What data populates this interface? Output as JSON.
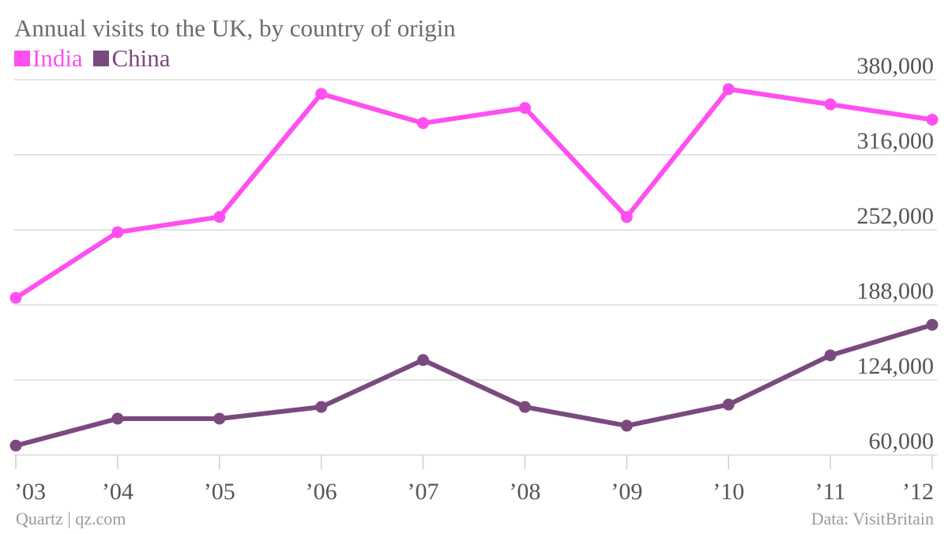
{
  "title": "Annual visits to the UK, by country of origin",
  "source_left": "Quartz | qz.com",
  "source_right": "Data: VisitBritain",
  "colors": {
    "India": "#ff4ff0",
    "China": "#7a4a7e",
    "grid": "#dcdcdc",
    "axis_text": "#555555"
  },
  "chart_data": {
    "type": "line",
    "x": [
      "’03",
      "’04",
      "’05",
      "’06",
      "’07",
      "’08",
      "’09",
      "’10",
      "’11",
      "’12"
    ],
    "series": [
      {
        "name": "India",
        "values": [
          194000,
          250000,
          263000,
          368000,
          343000,
          356000,
          263000,
          372000,
          359000,
          346000
        ]
      },
      {
        "name": "China",
        "values": [
          68000,
          91000,
          91000,
          101000,
          141000,
          101000,
          85000,
          103000,
          145000,
          171000
        ]
      }
    ],
    "yticks": [
      "380,000",
      "316,000",
      "252,000",
      "188,000",
      "124,000",
      "60,000"
    ],
    "yrange": [
      60000,
      380000
    ],
    "legend_position": "top-left",
    "grid": true
  }
}
